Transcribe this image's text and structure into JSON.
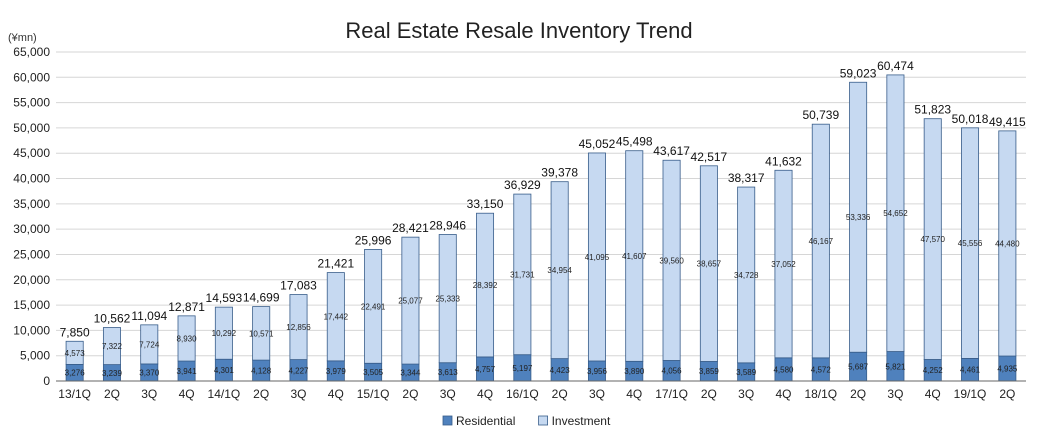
{
  "chart_data": {
    "type": "bar",
    "stacked": true,
    "title": "Real Estate Resale Inventory Trend",
    "unit_label": "(¥mn)",
    "categories": [
      "13/1Q",
      "2Q",
      "3Q",
      "4Q",
      "14/1Q",
      "2Q",
      "3Q",
      "4Q",
      "15/1Q",
      "2Q",
      "3Q",
      "4Q",
      "16/1Q",
      "2Q",
      "3Q",
      "4Q",
      "17/1Q",
      "2Q",
      "3Q",
      "4Q",
      "18/1Q",
      "2Q",
      "3Q",
      "4Q",
      "19/1Q",
      "2Q"
    ],
    "series": [
      {
        "name": "Residential",
        "color": "#4f81bd",
        "values": [
          3276,
          3239,
          3370,
          3941,
          4301,
          4128,
          4227,
          3979,
          3505,
          3344,
          3613,
          4757,
          5197,
          4423,
          3956,
          3890,
          4056,
          3859,
          3589,
          4580,
          4572,
          5687,
          5821,
          4252,
          4461,
          4935
        ]
      },
      {
        "name": "Investment",
        "color": "#c6d9f1",
        "values": [
          4573,
          7322,
          7724,
          8930,
          10292,
          10571,
          12856,
          17442,
          22491,
          25077,
          25333,
          28392,
          31731,
          34954,
          41095,
          41607,
          39560,
          38657,
          34728,
          37052,
          46167,
          53336,
          54652,
          47570,
          45556,
          44480
        ]
      }
    ],
    "totals": [
      7850,
      10562,
      11094,
      12871,
      14593,
      14699,
      17083,
      21421,
      25996,
      28421,
      28946,
      33150,
      36929,
      39378,
      45052,
      45498,
      43617,
      42517,
      38317,
      41632,
      50739,
      59023,
      60474,
      51823,
      50018,
      49415
    ],
    "ylim": [
      0,
      65000
    ],
    "yticks": [
      0,
      5000,
      10000,
      15000,
      20000,
      25000,
      30000,
      35000,
      40000,
      45000,
      50000,
      55000,
      60000,
      65000
    ],
    "grid": true,
    "legend_position": "bottom-center"
  }
}
